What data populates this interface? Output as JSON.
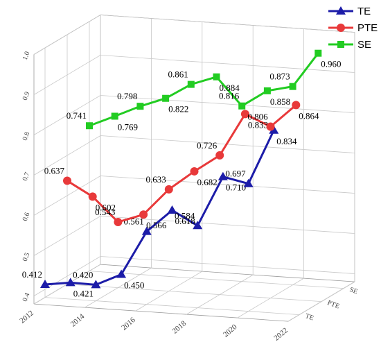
{
  "chart_data": {
    "type": "line3d",
    "x": [
      2012,
      2013,
      2014,
      2015,
      2016,
      2017,
      2018,
      2019,
      2020,
      2021
    ],
    "xlim": [
      2012,
      2022
    ],
    "xticks": [
      2012,
      2014,
      2016,
      2018,
      2020,
      2022
    ],
    "ylim": [
      0.38,
      1.0
    ],
    "yticks": [
      0.4,
      0.5,
      0.6,
      0.7,
      0.8,
      0.9,
      {
        "value": 1.0,
        "label": "1.0"
      }
    ],
    "z_categories": [
      "TE",
      "PTE",
      "SE"
    ],
    "grid": true,
    "legend": "upper right",
    "series": [
      {
        "name": "TE",
        "color": "#1c1ca8",
        "marker": "triangle",
        "values": [
          0.412,
          0.421,
          0.42,
          0.45,
          0.561,
          0.618,
          0.584,
          0.71,
          0.697,
          0.834
        ],
        "value_labels": [
          "0.412",
          "0.421",
          "0.420",
          "0.450",
          "0.561",
          "0.618",
          "0.584",
          "0.710",
          "0.697",
          "0.834"
        ]
      },
      {
        "name": "PTE",
        "color": "#e8393a",
        "marker": "circle",
        "values": [
          0.637,
          0.602,
          0.543,
          0.566,
          0.633,
          0.682,
          0.726,
          0.833,
          0.806,
          0.864
        ],
        "value_labels": [
          "0.637",
          "0.602",
          "0.543",
          "0.566",
          "0.633",
          "0.682",
          "0.726",
          "0.833",
          "0.806",
          "0.864"
        ]
      },
      {
        "name": "SE",
        "color": "#22cc22",
        "marker": "square",
        "values": [
          0.741,
          0.769,
          0.798,
          0.822,
          0.861,
          0.884,
          0.816,
          0.858,
          0.873,
          0.96
        ],
        "value_labels": [
          "0.741",
          "0.769",
          "0.798",
          "0.822",
          "0.861",
          "0.884",
          "0.816",
          "0.858",
          "0.873",
          "0.960"
        ]
      }
    ]
  }
}
